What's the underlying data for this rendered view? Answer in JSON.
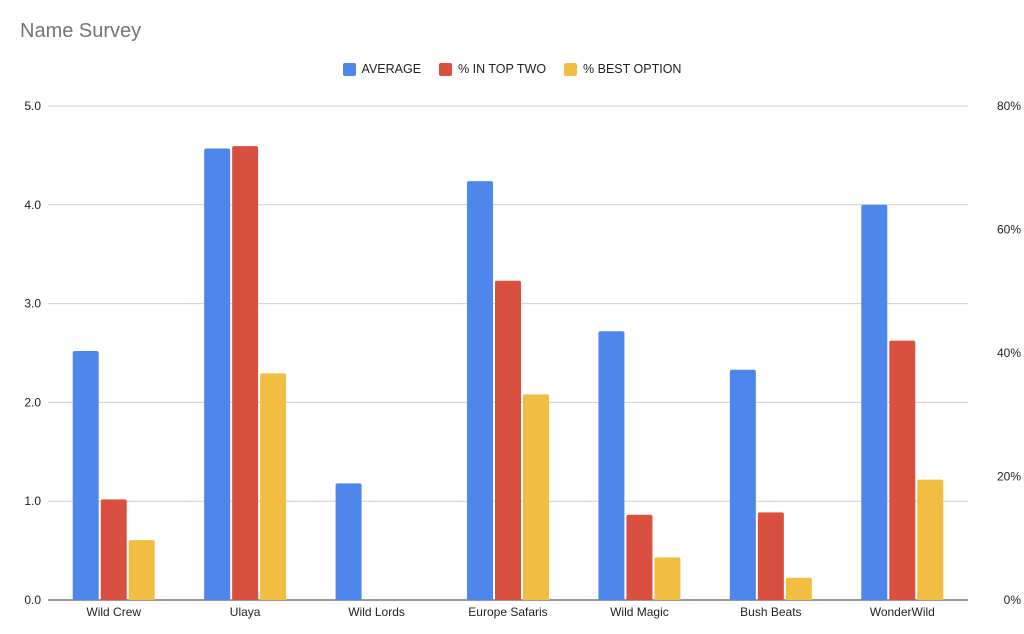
{
  "chart_data": {
    "type": "bar",
    "title": "Name Survey",
    "categories": [
      "Wild Crew",
      "Ulaya",
      "Wild Lords",
      "Europe Safaris",
      "Wild Magic",
      "Bush Beats",
      "WonderWild"
    ],
    "series": [
      {
        "name": "AVERAGE",
        "axis": "left",
        "color": "#4f86ec",
        "values": [
          2.52,
          4.57,
          1.18,
          4.24,
          2.72,
          2.33,
          4.0
        ]
      },
      {
        "name": "% IN TOP TWO",
        "axis": "right",
        "color": "#d95040",
        "values": [
          0.163,
          0.735,
          0,
          0.517,
          0.138,
          0.142,
          0.42
        ]
      },
      {
        "name": "% BEST OPTION",
        "axis": "right",
        "color": "#f2be42",
        "values": [
          0.097,
          0.367,
          0,
          0.333,
          0.069,
          0.036,
          0.195
        ]
      }
    ],
    "ylim": [
      0,
      5
    ],
    "y2lim": [
      0,
      0.8
    ],
    "yticks": [
      "0.0",
      "1.0",
      "2.0",
      "3.0",
      "4.0",
      "5.0"
    ],
    "y2ticks": [
      "0%",
      "20%",
      "40%",
      "60%",
      "80%"
    ],
    "grid": true,
    "legend_position": "top"
  }
}
